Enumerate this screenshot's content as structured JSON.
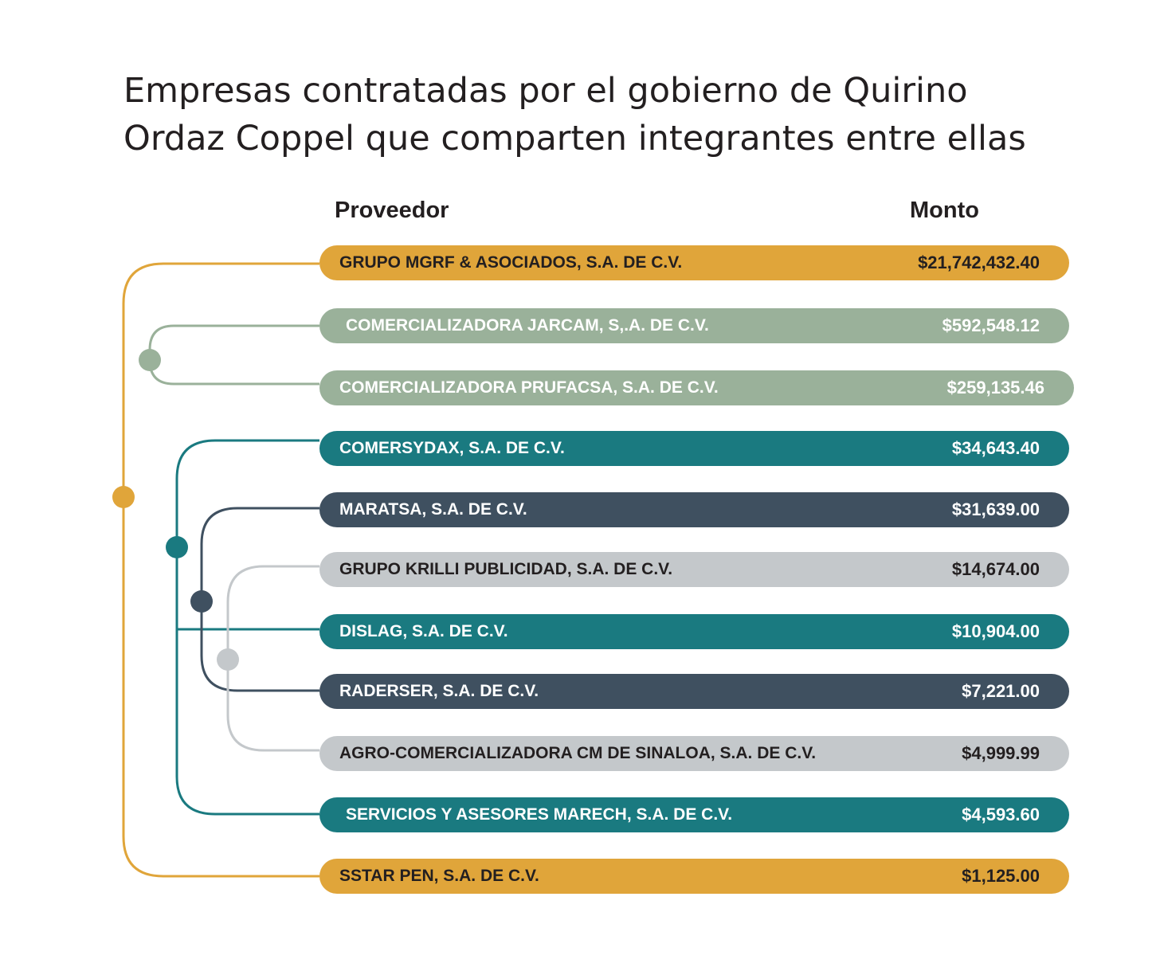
{
  "title": {
    "line1": "Empresas contratadas por el gobierno de Quirino",
    "line2": "Ordaz Coppel que comparten integrantes entre ellas"
  },
  "headers": {
    "provider": "Proveedor",
    "amount": "Monto"
  },
  "colors": {
    "gold": "#e0a53a",
    "sage": "#9ab19a",
    "teal": "#1a7a80",
    "slate": "#3f5060",
    "grey": "#c4c8cb"
  },
  "rows": [
    {
      "provider": "GRUPO MGRF & ASOCIADOS, S.A. DE C.V.",
      "amount": "$21,742,432.40",
      "group": "gold"
    },
    {
      "provider": "COMERCIALIZADORA JARCAM, S,.A. DE C.V.",
      "amount": "$592,548.12",
      "group": "sage"
    },
    {
      "provider": "COMERCIALIZADORA PRUFACSA, S.A. DE C.V.",
      "amount": "$259,135.46",
      "group": "sage"
    },
    {
      "provider": "COMERSYDAX, S.A. DE C.V.",
      "amount": "$34,643.40",
      "group": "teal"
    },
    {
      "provider": "MARATSA, S.A. DE C.V.",
      "amount": "$31,639.00",
      "group": "slate"
    },
    {
      "provider": "GRUPO KRILLI PUBLICIDAD, S.A. DE C.V.",
      "amount": "$14,674.00",
      "group": "grey"
    },
    {
      "provider": "DISLAG, S.A. DE C.V.",
      "amount": "$10,904.00",
      "group": "teal"
    },
    {
      "provider": "RADERSER, S.A. DE C.V.",
      "amount": "$7,221.00",
      "group": "slate"
    },
    {
      "provider": "AGRO-COMERCIALIZADORA CM DE SINALOA, S.A. DE C.V.",
      "amount": "$4,999.99",
      "group": "grey"
    },
    {
      "provider": "SERVICIOS Y ASESORES MARECH, S.A. DE C.V.",
      "amount": "$4,593.60",
      "group": "teal"
    },
    {
      "provider": "SSTAR PEN, S.A. DE C.V.",
      "amount": "$1,125.00",
      "group": "gold"
    }
  ]
}
